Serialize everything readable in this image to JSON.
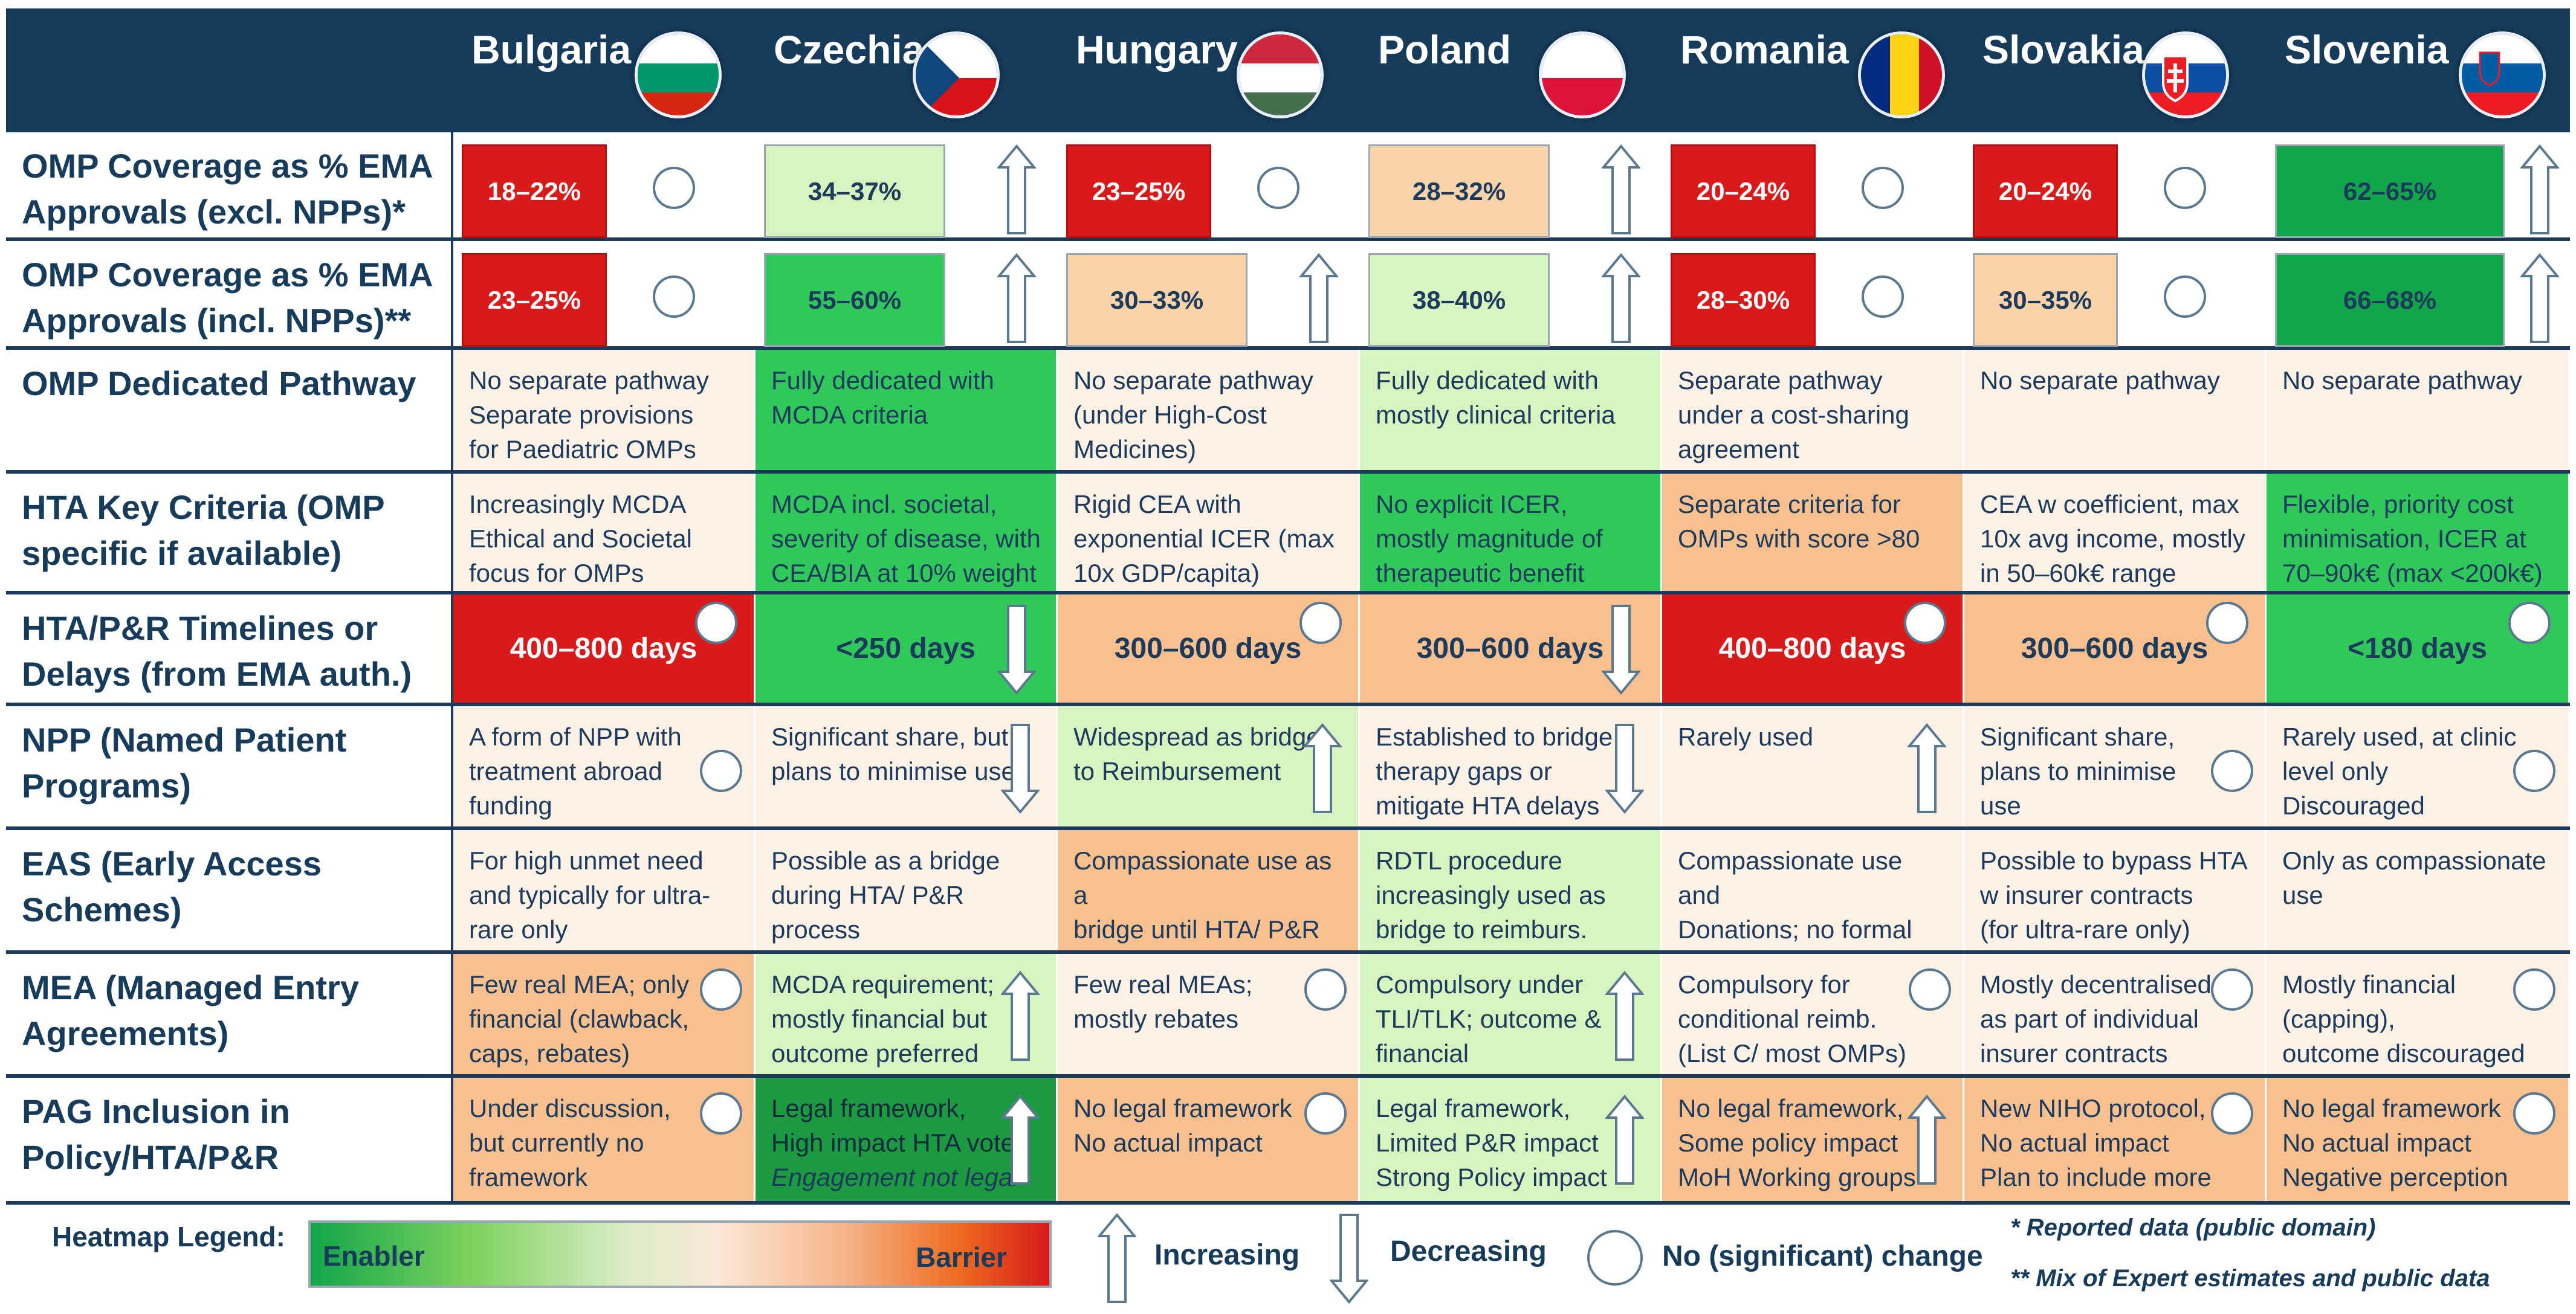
{
  "colors": {
    "header_bg": "#163b5b",
    "red": "#d81a1a",
    "dark_green": "#12a64a",
    "green": "#30c85a",
    "light_green": "#d6f3c0",
    "peach": "#fbd3a8",
    "cream": "#fdf1e6",
    "orange": "#f7c08e",
    "deep_green": "#1c9a3f"
  },
  "countries": [
    {
      "name": "Bulgaria",
      "flag": "bulgaria-flag"
    },
    {
      "name": "Czechia",
      "flag": "czechia-flag"
    },
    {
      "name": "Hungary",
      "flag": "hungary-flag"
    },
    {
      "name": "Poland",
      "flag": "poland-flag"
    },
    {
      "name": "Romania",
      "flag": "romania-flag"
    },
    {
      "name": "Slovakia",
      "flag": "slovakia-flag"
    },
    {
      "name": "Slovenia",
      "flag": "slovenia-flag"
    }
  ],
  "rows": {
    "coverage_excl": {
      "label": "OMP Coverage as % EMA\nApprovals (excl. NPPs)*",
      "cells": [
        {
          "value": "18–22%",
          "color": "red",
          "trend": "no-change"
        },
        {
          "value": "34–37%",
          "color": "light_green",
          "trend": "increasing"
        },
        {
          "value": "23–25%",
          "color": "red",
          "trend": "no-change"
        },
        {
          "value": "28–32%",
          "color": "peach",
          "trend": "increasing"
        },
        {
          "value": "20–24%",
          "color": "red",
          "trend": "no-change"
        },
        {
          "value": "20–24%",
          "color": "red",
          "trend": "no-change"
        },
        {
          "value": "62–65%",
          "color": "dark_green",
          "trend": "increasing"
        }
      ]
    },
    "coverage_incl": {
      "label": "OMP Coverage as % EMA\nApprovals (incl. NPPs)**",
      "cells": [
        {
          "value": "23–25%",
          "color": "red",
          "trend": "no-change"
        },
        {
          "value": "55–60%",
          "color": "green",
          "trend": "increasing"
        },
        {
          "value": "30–33%",
          "color": "peach",
          "trend": "increasing"
        },
        {
          "value": "38–40%",
          "color": "light_green",
          "trend": "increasing"
        },
        {
          "value": "28–30%",
          "color": "red",
          "trend": "no-change"
        },
        {
          "value": "30–35%",
          "color": "peach",
          "trend": "no-change"
        },
        {
          "value": "66–68%",
          "color": "dark_green",
          "trend": "increasing"
        }
      ]
    },
    "pathway": {
      "label": "OMP Dedicated Pathway",
      "cells": [
        {
          "text": "No separate pathway\nSeparate provisions\nfor Paediatric OMPs",
          "color": "cream"
        },
        {
          "text": "Fully dedicated with\nMCDA criteria",
          "color": "green"
        },
        {
          "text": "No separate pathway\n(under High-Cost\nMedicines)",
          "color": "cream"
        },
        {
          "text": "Fully dedicated with\nmostly clinical criteria",
          "color": "light_green"
        },
        {
          "text": "Separate pathway\nunder a cost-sharing\nagreement",
          "color": "cream"
        },
        {
          "text": "No separate pathway",
          "color": "cream"
        },
        {
          "text": "No separate pathway",
          "color": "cream"
        }
      ]
    },
    "hta": {
      "label": "HTA Key Criteria (OMP\nspecific if available)",
      "cells": [
        {
          "text": "Increasingly MCDA\nEthical and Societal\nfocus for OMPs",
          "color": "cream"
        },
        {
          "text": "MCDA incl. societal,\nseverity of disease, with\nCEA/BIA at 10% weight",
          "color": "green"
        },
        {
          "text": "Rigid CEA with\nexponential ICER (max\n10x GDP/capita)",
          "color": "cream"
        },
        {
          "text": "No explicit ICER,\nmostly magnitude of\ntherapeutic benefit",
          "color": "green"
        },
        {
          "text": "Separate criteria for\nOMPs with score >80",
          "color": "orange"
        },
        {
          "text": "CEA w coefficient, max\n10x avg income, mostly\nin 50–60k€ range",
          "color": "cream"
        },
        {
          "text": "Flexible, priority cost\nminimisation, ICER at\n70–90k€ (max <200k€)",
          "color": "green"
        }
      ]
    },
    "timelines": {
      "label": "HTA/P&R Timelines or\nDelays (from EMA auth.)",
      "cells": [
        {
          "value": "400–800 days",
          "color": "red",
          "trend": "no-change"
        },
        {
          "value": "<250 days",
          "color": "green",
          "trend": "decreasing"
        },
        {
          "value": "300–600 days",
          "color": "orange",
          "trend": "no-change"
        },
        {
          "value": "300–600 days",
          "color": "orange",
          "trend": "decreasing"
        },
        {
          "value": "400–800 days",
          "color": "red",
          "trend": "no-change"
        },
        {
          "value": "300–600 days",
          "color": "orange",
          "trend": "no-change"
        },
        {
          "value": "<180 days",
          "color": "green",
          "trend": "no-change"
        }
      ]
    },
    "npp": {
      "label": "NPP (Named Patient\nPrograms)",
      "cells": [
        {
          "text": "A form of NPP with\ntreatment abroad\nfunding",
          "color": "cream",
          "trend": "no-change"
        },
        {
          "text": "Significant share, but\nplans to minimise use",
          "color": "cream",
          "trend": "decreasing"
        },
        {
          "text": "Widespread as bridge\nto Reimbursement",
          "color": "light_green",
          "trend": "increasing"
        },
        {
          "text": "Established to bridge\ntherapy gaps or\nmitigate HTA delays",
          "color": "cream",
          "trend": "decreasing"
        },
        {
          "text": "Rarely used",
          "color": "cream",
          "trend": "increasing"
        },
        {
          "text": "Significant share,\nplans  to minimise\nuse",
          "color": "cream",
          "trend": "no-change"
        },
        {
          "text": "Rarely used, at clinic\nlevel only\nDiscouraged",
          "color": "cream",
          "trend": "no-change"
        }
      ]
    },
    "eas": {
      "label": "EAS (Early Access\nSchemes)",
      "cells": [
        {
          "text": "For high unmet need\nand typically for ultra-\nrare only",
          "color": "cream"
        },
        {
          "text": "Possible as a bridge\nduring HTA/ P&R\nprocess",
          "color": "cream"
        },
        {
          "text": "Compassionate use as a\nbridge until HTA/ P&R\nprocess",
          "color": "orange"
        },
        {
          "text": "RDTL procedure\nincreasingly used as\nbridge to reimburs.",
          "color": "light_green"
        },
        {
          "text": "Compassionate use and\nDonations; no formal\nEAS",
          "color": "cream"
        },
        {
          "text": "Possible to bypass HTA\nw  insurer contracts\n(for ultra-rare only)",
          "color": "cream"
        },
        {
          "text": "Only as compassionate\nuse",
          "color": "cream"
        }
      ]
    },
    "mea": {
      "label": "MEA (Managed Entry\nAgreements)",
      "cells": [
        {
          "text": "Few real MEA; only\nfinancial (clawback,\ncaps, rebates)",
          "color": "orange",
          "trend": "no-change"
        },
        {
          "text": "MCDA requirement;\nmostly financial but\noutcome preferred",
          "color": "light_green",
          "trend": "increasing"
        },
        {
          "text": "Few real MEAs;\nmostly rebates",
          "color": "cream",
          "trend": "no-change"
        },
        {
          "text": "Compulsory under\nTLI/TLK; outcome &\nfinancial",
          "color": "light_green",
          "trend": "increasing"
        },
        {
          "text": "Compulsory for\nconditional reimb.\n(List C/ most OMPs)",
          "color": "cream",
          "trend": "no-change"
        },
        {
          "text": "Mostly decentralised\nas part of individual\ninsurer contracts",
          "color": "cream",
          "trend": "no-change"
        },
        {
          "text": "Mostly financial\n(capping),\noutcome discouraged",
          "color": "cream",
          "trend": "no-change"
        }
      ]
    },
    "pag": {
      "label": "PAG Inclusion in\nPolicy/HTA/P&R",
      "cells": [
        {
          "text": "Under discussion,\nbut currently no\nframework",
          "color": "orange",
          "trend": "no-change"
        },
        {
          "text": "Legal framework,\nHigh impact HTA vote",
          "italic": "Engagement not legal",
          "color": "deep_green",
          "trend": "increasing"
        },
        {
          "text": "No legal framework\nNo actual impact",
          "color": "orange",
          "trend": "no-change"
        },
        {
          "text": "Legal framework,\nLimited P&R impact\nStrong Policy impact",
          "color": "light_green",
          "trend": "increasing"
        },
        {
          "text": "No legal framework,\nSome policy impact\nMoH Working groups",
          "color": "orange",
          "trend": "increasing"
        },
        {
          "text": "New NIHO protocol,\nNo actual impact\nPlan to include more",
          "color": "orange",
          "trend": "no-change"
        },
        {
          "text": "No legal framework\nNo actual impact\nNegative perception",
          "color": "orange",
          "trend": "no-change"
        }
      ]
    }
  },
  "legend": {
    "title": "Heatmap Legend:",
    "enabler": "Enabler",
    "barrier": "Barrier",
    "increasing": "Increasing",
    "decreasing": "Decreasing",
    "no_change": "No (significant) change",
    "note1": "* Reported data (public domain)",
    "note2": "** Mix of Expert estimates and  public data"
  }
}
